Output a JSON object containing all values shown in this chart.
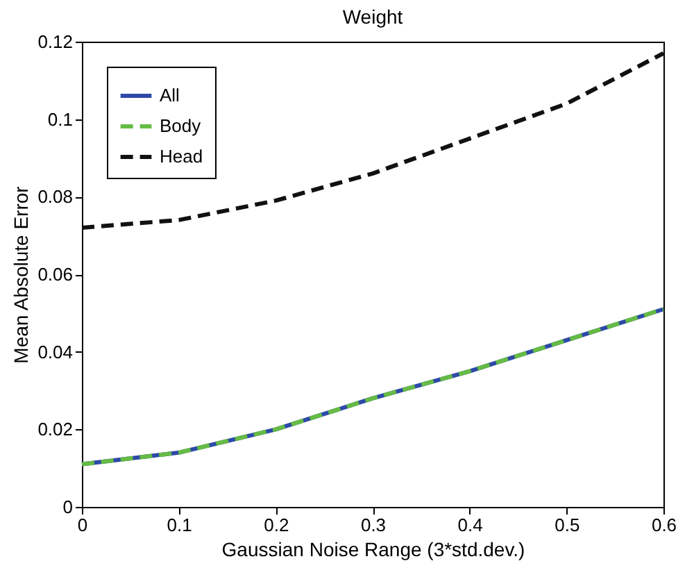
{
  "chart_data": {
    "type": "line",
    "title": "Weight",
    "xlabel": "Gaussian Noise Range (3*std.dev.)",
    "ylabel": "Mean Absolute Error",
    "x": [
      0,
      0.1,
      0.2,
      0.3,
      0.4,
      0.5,
      0.6
    ],
    "series": [
      {
        "name": "All",
        "color": "#2e4aa8",
        "line_style": "solid",
        "values": [
          0.011,
          0.014,
          0.02,
          0.028,
          0.035,
          0.043,
          0.051
        ]
      },
      {
        "name": "Body",
        "color": "#66bb44",
        "line_style": "dashed",
        "values": [
          0.011,
          0.014,
          0.02,
          0.028,
          0.035,
          0.043,
          0.051
        ]
      },
      {
        "name": "Head",
        "color": "#111111",
        "line_style": "dashed",
        "values": [
          0.072,
          0.074,
          0.079,
          0.086,
          0.095,
          0.104,
          0.117
        ]
      }
    ],
    "xlim": [
      0,
      0.6
    ],
    "xticks": [
      0,
      0.1,
      0.2,
      0.3,
      0.4,
      0.5,
      0.6
    ],
    "ylim": [
      0,
      0.12
    ],
    "yticks": [
      0,
      0.02,
      0.04,
      0.06,
      0.08,
      0.1,
      0.12
    ],
    "grid": false,
    "legend": "top left",
    "marker": "none"
  }
}
